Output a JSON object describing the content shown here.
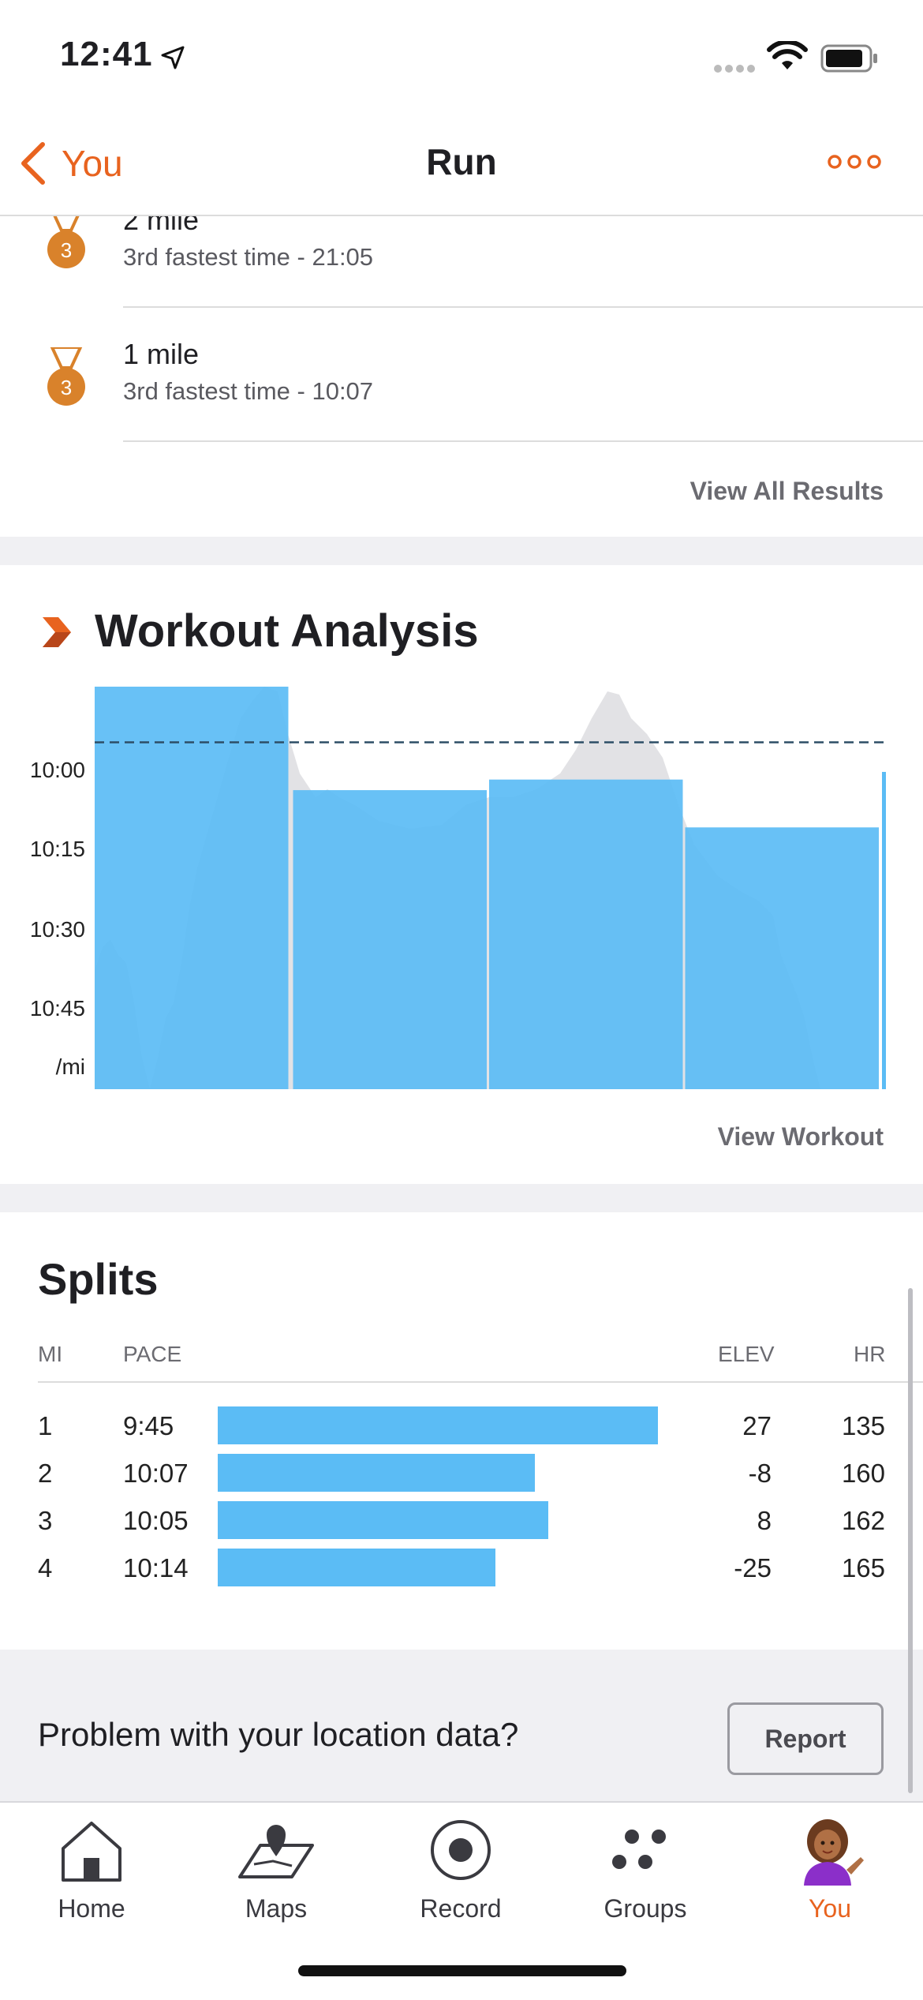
{
  "status_bar": {
    "time": "12:41"
  },
  "nav": {
    "back_label": "You",
    "title": "Run"
  },
  "results": [
    {
      "title": "2 mile",
      "subtitle": "3rd fastest time - 21:05",
      "medal_rank": "3"
    },
    {
      "title": "1 mile",
      "subtitle": "3rd fastest time - 10:07",
      "medal_rank": "3"
    }
  ],
  "view_all_results_label": "View All Results",
  "workout_analysis": {
    "title": "Workout Analysis",
    "view_workout_label": "View Workout"
  },
  "chart_data": {
    "type": "bar",
    "categories": [
      "1",
      "2",
      "3",
      "4"
    ],
    "values": [
      "9:45",
      "10:07",
      "10:05",
      "10:14"
    ],
    "y_ticks": [
      "10:00",
      "10:15",
      "10:30",
      "10:45"
    ],
    "y_unit_label": "/mi",
    "average_line": "9:58",
    "bar_color": "#5bbcf5",
    "background_series": "elevation profile (grey area)"
  },
  "splits": {
    "title": "Splits",
    "headers": {
      "mi": "MI",
      "pace": "PACE",
      "elev": "ELEV",
      "hr": "HR"
    },
    "rows": [
      {
        "mi": "1",
        "pace": "9:45",
        "elev": "27",
        "hr": "135",
        "bar_fraction": 1.0
      },
      {
        "mi": "2",
        "pace": "10:07",
        "elev": "-8",
        "hr": "160",
        "bar_fraction": 0.72
      },
      {
        "mi": "3",
        "pace": "10:05",
        "elev": "8",
        "hr": "162",
        "bar_fraction": 0.75
      },
      {
        "mi": "4",
        "pace": "10:14",
        "elev": "-25",
        "hr": "165",
        "bar_fraction": 0.63
      }
    ]
  },
  "location_problem": {
    "text": "Problem with your location data?",
    "button_label": "Report"
  },
  "tabs": [
    {
      "label": "Home",
      "icon": "home-icon"
    },
    {
      "label": "Maps",
      "icon": "maps-icon"
    },
    {
      "label": "Record",
      "icon": "record-icon"
    },
    {
      "label": "Groups",
      "icon": "groups-icon"
    },
    {
      "label": "You",
      "icon": "avatar-icon",
      "active": true
    }
  ],
  "colors": {
    "accent": "#e8631f",
    "bar": "#5bbcf5",
    "medal": "#d9822b"
  }
}
